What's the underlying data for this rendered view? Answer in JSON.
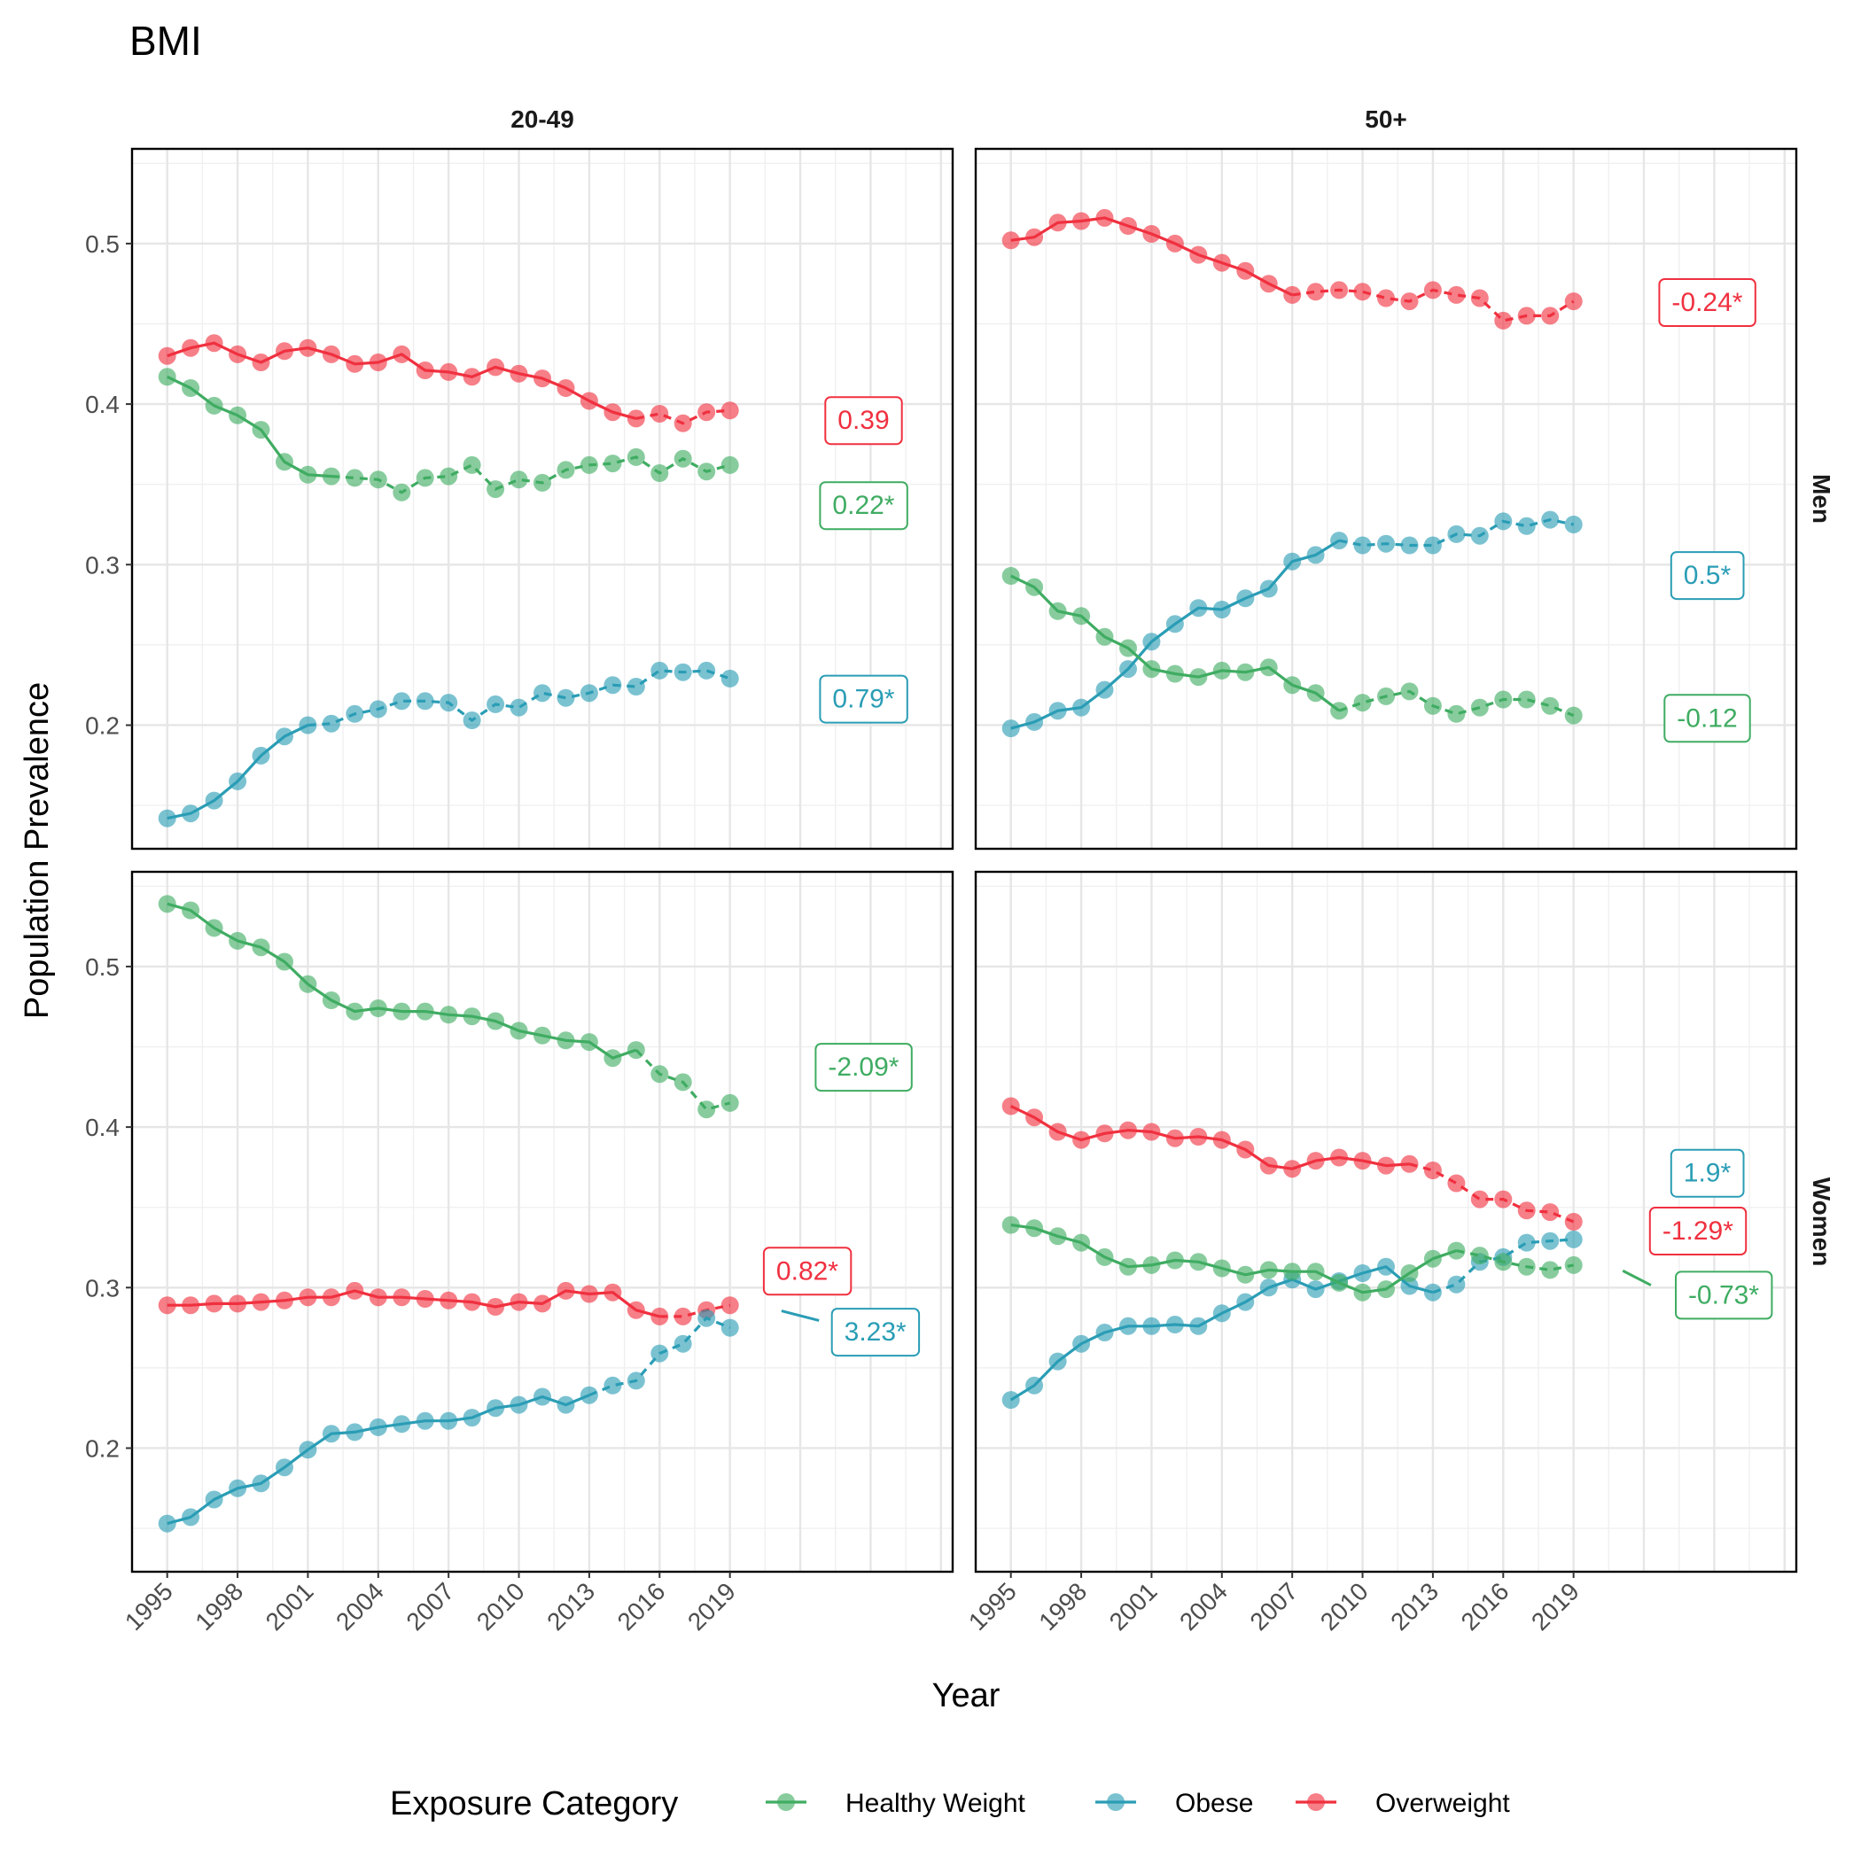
{
  "chart_data": {
    "type": "line",
    "title": "BMI",
    "xlabel": "Year",
    "ylabel": "Population Prevalence",
    "x_ticks": [
      1995,
      1998,
      2001,
      2004,
      2007,
      2010,
      2013,
      2016,
      2019
    ],
    "xlim": [
      1993.5,
      2028.5
    ],
    "y_ticks": [
      0.2,
      0.3,
      0.4,
      0.5
    ],
    "y_tick_labels": [
      "0.2",
      "0.3",
      "0.4",
      "0.5"
    ],
    "ylim": [
      0.123,
      0.559
    ],
    "grid": true,
    "legend": {
      "title": "Exposure Category",
      "position": "bottom",
      "entries": [
        "Healthy Weight",
        "Obese",
        "Overweight"
      ]
    },
    "colors": {
      "Healthy Weight": "#3fac62",
      "Obese": "#2a9db5",
      "Overweight": "#f0303f"
    },
    "column_labels": [
      "20-49",
      "50+"
    ],
    "row_labels": [
      "Men",
      "Women"
    ],
    "panels": [
      {
        "row": "Men",
        "column": "20-49",
        "series": [
          {
            "name": "Overweight",
            "breakpoint": 2015,
            "values": [
              0.43,
              0.435,
              0.438,
              0.431,
              0.426,
              0.433,
              0.435,
              0.431,
              0.425,
              0.426,
              0.431,
              0.421,
              0.42,
              0.417,
              0.423,
              0.419,
              0.416,
              0.41,
              0.402,
              0.395,
              0.391,
              0.394,
              0.388,
              0.395,
              0.396
            ],
            "trend_label": "0.39"
          },
          {
            "name": "Healthy Weight",
            "breakpoint": 2002,
            "values": [
              0.417,
              0.41,
              0.399,
              0.393,
              0.384,
              0.364,
              0.356,
              0.355,
              0.354,
              0.353,
              0.345,
              0.354,
              0.355,
              0.362,
              0.347,
              0.353,
              0.351,
              0.359,
              0.362,
              0.363,
              0.367,
              0.357,
              0.366,
              0.358,
              0.362
            ],
            "trend_label": "0.22*"
          },
          {
            "name": "Obese",
            "breakpoint": 2001,
            "values": [
              0.142,
              0.145,
              0.153,
              0.165,
              0.181,
              0.193,
              0.2,
              0.201,
              0.207,
              0.21,
              0.215,
              0.215,
              0.214,
              0.203,
              0.213,
              0.211,
              0.22,
              0.217,
              0.22,
              0.225,
              0.224,
              0.234,
              0.233,
              0.234,
              0.229
            ],
            "trend_label": "0.79*"
          }
        ]
      },
      {
        "row": "Men",
        "column": "50+",
        "series": [
          {
            "name": "Overweight",
            "breakpoint": 2007,
            "values": [
              0.502,
              0.504,
              0.513,
              0.514,
              0.516,
              0.511,
              0.506,
              0.5,
              0.493,
              0.488,
              0.483,
              0.475,
              0.468,
              0.47,
              0.471,
              0.47,
              0.466,
              0.464,
              0.471,
              0.468,
              0.466,
              0.452,
              0.455,
              0.455,
              0.464
            ],
            "trend_label": "-0.24*"
          },
          {
            "name": "Obese",
            "breakpoint": 2009,
            "values": [
              0.198,
              0.202,
              0.209,
              0.211,
              0.222,
              0.235,
              0.252,
              0.263,
              0.273,
              0.272,
              0.279,
              0.285,
              0.302,
              0.306,
              0.315,
              0.312,
              0.313,
              0.312,
              0.312,
              0.319,
              0.318,
              0.327,
              0.324,
              0.328,
              0.325
            ],
            "trend_label": "0.5*"
          },
          {
            "name": "Healthy Weight",
            "breakpoint": 2009,
            "values": [
              0.293,
              0.286,
              0.271,
              0.268,
              0.255,
              0.248,
              0.235,
              0.232,
              0.23,
              0.234,
              0.233,
              0.236,
              0.225,
              0.22,
              0.209,
              0.214,
              0.218,
              0.221,
              0.212,
              0.207,
              0.211,
              0.216,
              0.216,
              0.212,
              0.206
            ],
            "trend_label": "-0.12"
          }
        ]
      },
      {
        "row": "Women",
        "column": "20-49",
        "series": [
          {
            "name": "Healthy Weight",
            "breakpoint": 2015,
            "values": [
              0.539,
              0.535,
              0.524,
              0.516,
              0.512,
              0.503,
              0.489,
              0.479,
              0.472,
              0.474,
              0.472,
              0.472,
              0.47,
              0.469,
              0.466,
              0.46,
              0.457,
              0.454,
              0.453,
              0.443,
              0.448,
              0.433,
              0.428,
              0.411,
              0.415
            ],
            "trend_label": "-2.09*"
          },
          {
            "name": "Overweight",
            "breakpoint": 2016,
            "values": [
              0.289,
              0.289,
              0.29,
              0.29,
              0.291,
              0.292,
              0.294,
              0.294,
              0.298,
              0.294,
              0.294,
              0.293,
              0.292,
              0.291,
              0.288,
              0.291,
              0.29,
              0.298,
              0.296,
              0.297,
              0.286,
              0.282,
              0.282,
              0.286,
              0.289
            ],
            "trend_label": "0.82*"
          },
          {
            "name": "Obese",
            "breakpoint": 2013,
            "values": [
              0.153,
              0.157,
              0.168,
              0.175,
              0.178,
              0.188,
              0.199,
              0.209,
              0.21,
              0.213,
              0.215,
              0.217,
              0.217,
              0.219,
              0.225,
              0.227,
              0.232,
              0.227,
              0.233,
              0.239,
              0.242,
              0.259,
              0.265,
              0.281,
              0.275
            ],
            "trend_label": "3.23*"
          }
        ]
      },
      {
        "row": "Women",
        "column": "50+",
        "series": [
          {
            "name": "Overweight",
            "breakpoint": 2012,
            "values": [
              0.413,
              0.406,
              0.397,
              0.392,
              0.396,
              0.398,
              0.397,
              0.393,
              0.394,
              0.392,
              0.386,
              0.376,
              0.374,
              0.379,
              0.381,
              0.379,
              0.376,
              0.377,
              0.373,
              0.365,
              0.355,
              0.355,
              0.348,
              0.347,
              0.341
            ],
            "trend_label": "-1.29*"
          },
          {
            "name": "Obese",
            "breakpoint": 2013,
            "values": [
              0.23,
              0.239,
              0.254,
              0.265,
              0.272,
              0.276,
              0.276,
              0.277,
              0.276,
              0.284,
              0.291,
              0.3,
              0.305,
              0.299,
              0.304,
              0.309,
              0.313,
              0.301,
              0.297,
              0.302,
              0.316,
              0.319,
              0.328,
              0.329,
              0.33
            ],
            "trend_label": "1.9*"
          },
          {
            "name": "Healthy Weight",
            "breakpoint": 2014,
            "values": [
              0.339,
              0.337,
              0.332,
              0.328,
              0.319,
              0.313,
              0.314,
              0.317,
              0.316,
              0.312,
              0.308,
              0.311,
              0.31,
              0.31,
              0.303,
              0.297,
              0.299,
              0.309,
              0.318,
              0.323,
              0.32,
              0.316,
              0.313,
              0.311,
              0.314
            ],
            "trend_label": "-0.73*"
          }
        ]
      }
    ]
  }
}
